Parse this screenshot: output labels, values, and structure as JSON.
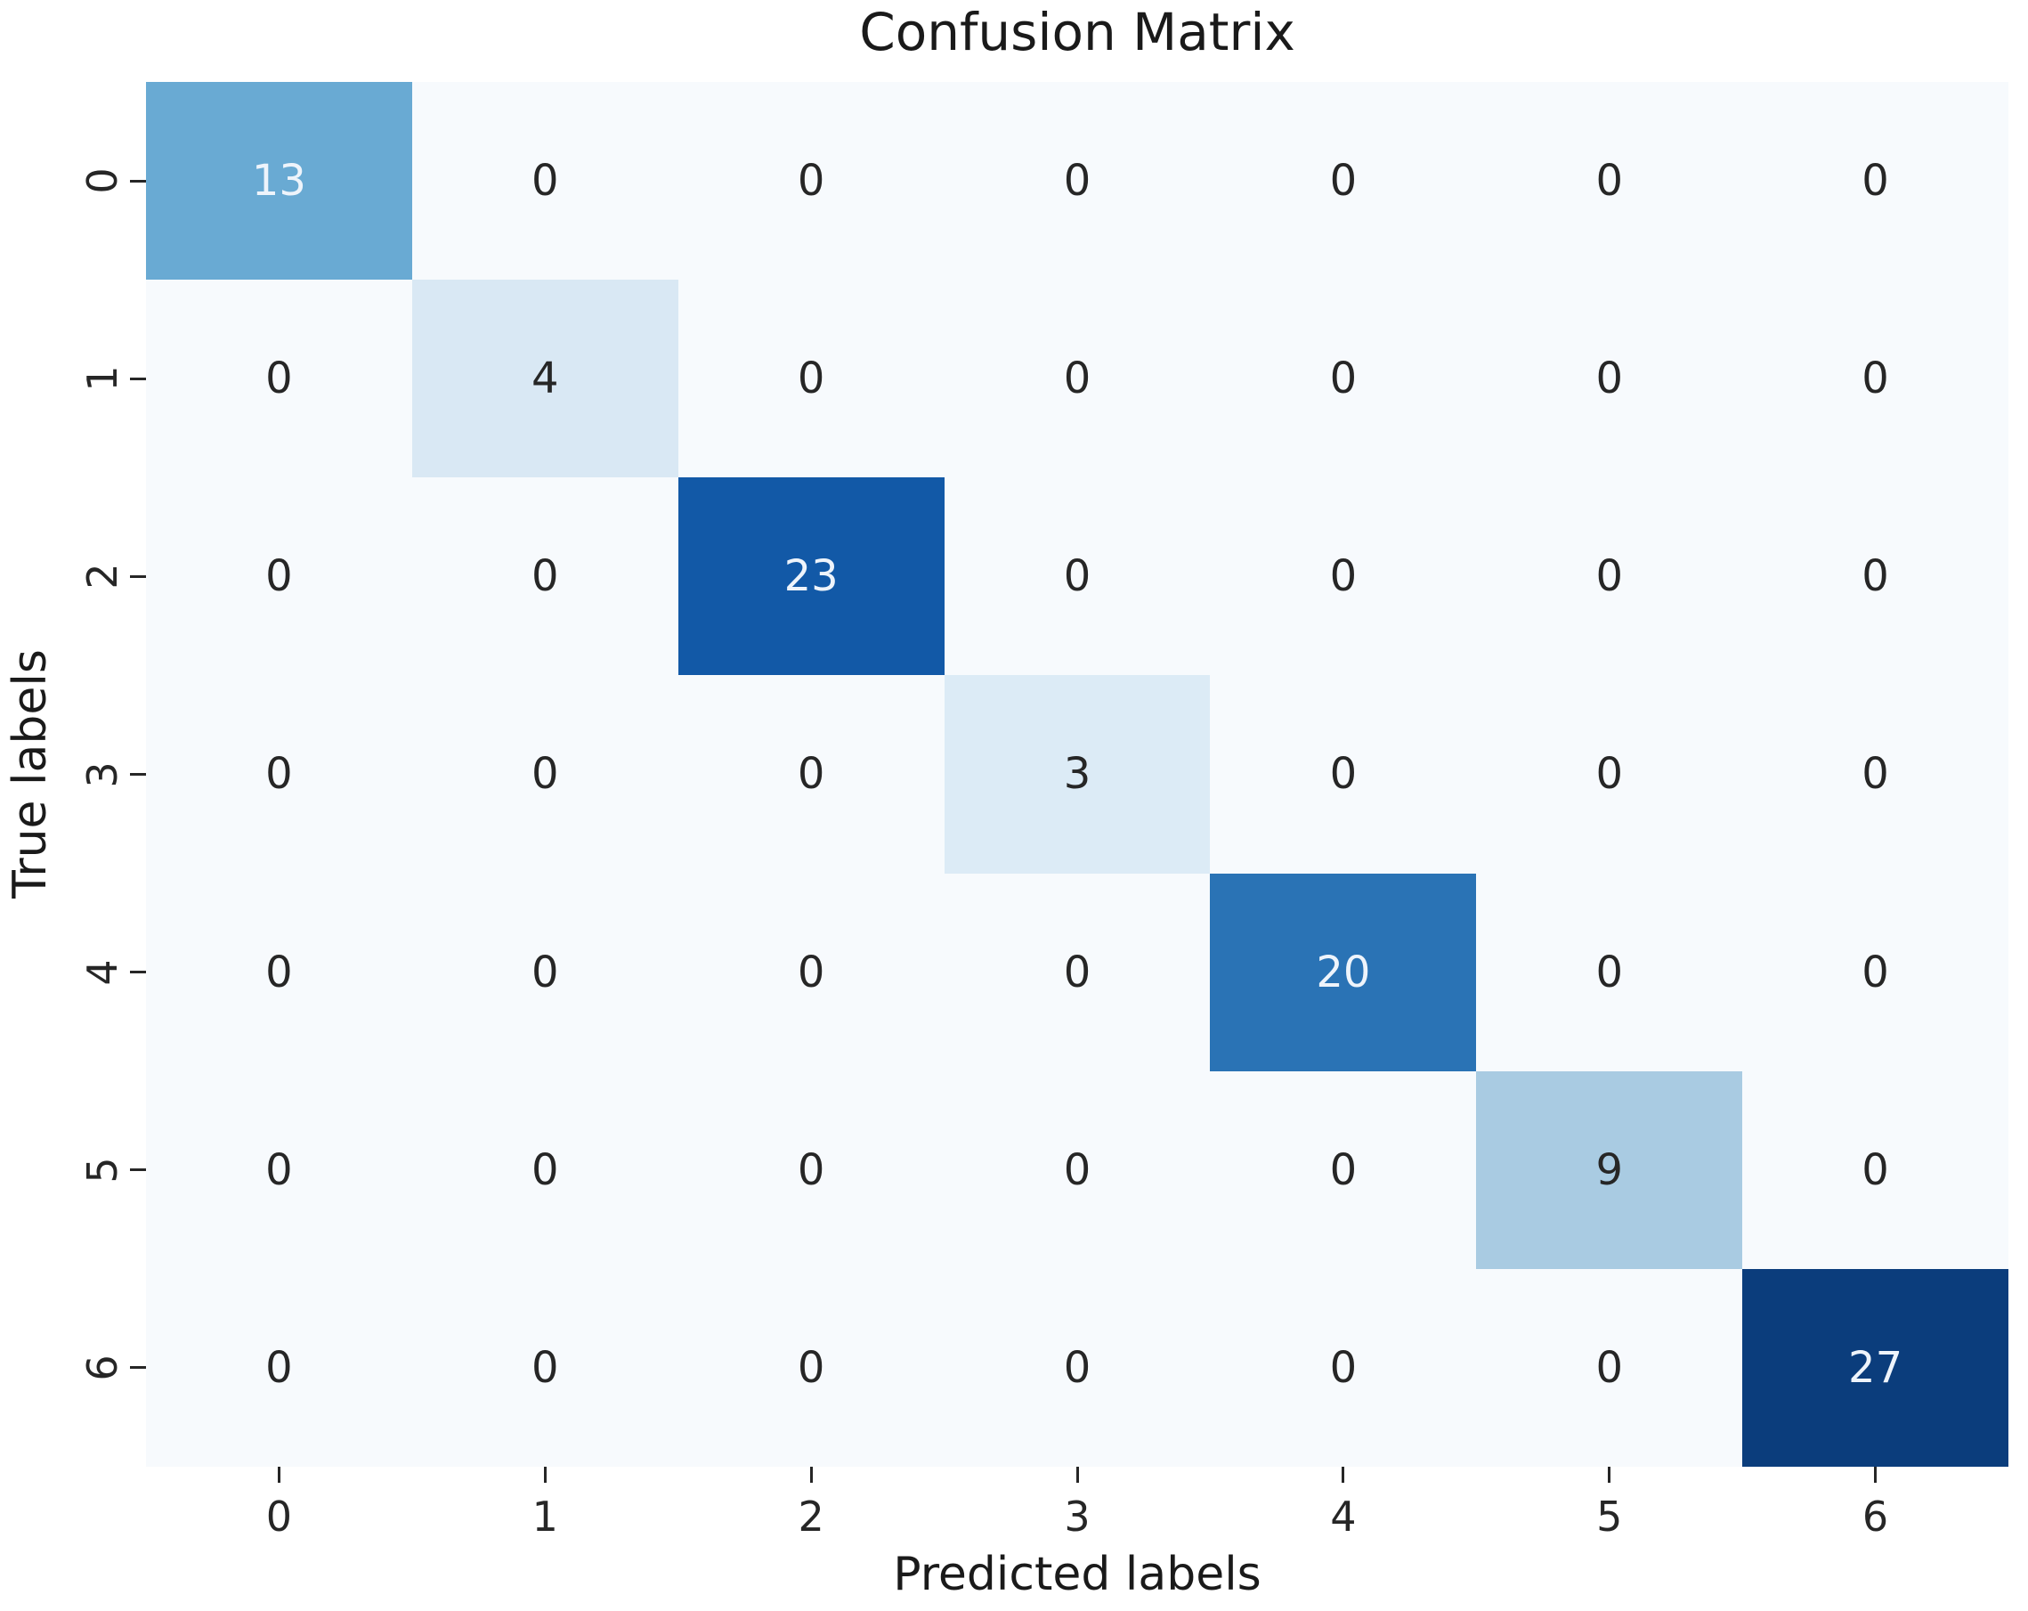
{
  "chart_data": {
    "type": "heatmap",
    "title": "Confusion Matrix",
    "xlabel": "Predicted labels",
    "ylabel": "True labels",
    "x_tick_labels": [
      "0",
      "1",
      "2",
      "3",
      "4",
      "5",
      "6"
    ],
    "y_tick_labels": [
      "0",
      "1",
      "2",
      "3",
      "4",
      "5",
      "6"
    ],
    "matrix": [
      [
        13,
        0,
        0,
        0,
        0,
        0,
        0
      ],
      [
        0,
        4,
        0,
        0,
        0,
        0,
        0
      ],
      [
        0,
        0,
        23,
        0,
        0,
        0,
        0
      ],
      [
        0,
        0,
        0,
        3,
        0,
        0,
        0
      ],
      [
        0,
        0,
        0,
        0,
        20,
        0,
        0
      ],
      [
        0,
        0,
        0,
        0,
        0,
        9,
        0
      ],
      [
        0,
        0,
        0,
        0,
        0,
        0,
        27
      ]
    ],
    "colormap": "Blues",
    "value_range": [
      0,
      27
    ],
    "grid": false,
    "legend": "none"
  },
  "colors": {
    "figure_background": "#ffffff",
    "cell_fills": {
      "0": "#f7fafd",
      "3": "#dcebf6",
      "4": "#d9e8f4",
      "9": "#a9cbe2",
      "13": "#69aad3",
      "20": "#2a73b5",
      "23": "#1259a7",
      "27": "#0b3d7c"
    },
    "light_text_values": [
      13,
      20,
      23,
      27
    ],
    "text_dark": "#262626",
    "text_light": "#eef4fb",
    "tick_color": "#262626"
  }
}
